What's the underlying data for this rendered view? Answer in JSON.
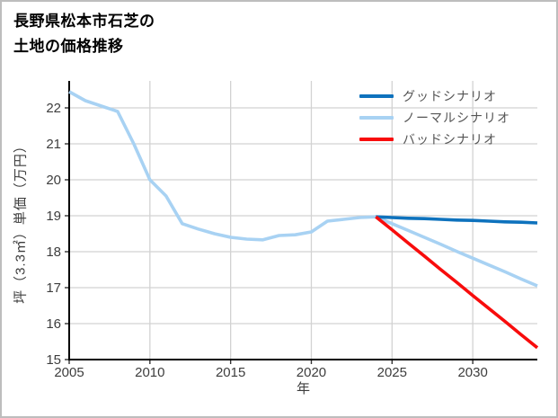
{
  "chart_data": {
    "type": "line",
    "title_lines": [
      "長野県松本市石芝の",
      "土地の価格推移"
    ],
    "xlabel": "年",
    "ylabel": "坪（3.3㎡）単価（万円）",
    "xlim": [
      2005,
      2034
    ],
    "ylim": [
      15,
      22.75
    ],
    "xticks": [
      2005,
      2010,
      2015,
      2020,
      2025,
      2030
    ],
    "yticks": [
      15,
      16,
      17,
      18,
      19,
      20,
      21,
      22
    ],
    "grid": true,
    "legend_position": "upper right",
    "draw_order": [
      1,
      0,
      2
    ],
    "colors": {
      "good": "#0e72bd",
      "normal": "#a8d2f3",
      "bad": "#f80c0c",
      "grid": "#d2d2d2",
      "spine": "#000000",
      "tick_label": "#3d3d3d",
      "legend_text": "#555555"
    },
    "series": [
      {
        "name": "グッドシナリオ",
        "color": "#0e72bd",
        "x": [
          2024,
          2025,
          2026,
          2027,
          2028,
          2029,
          2030,
          2031,
          2032,
          2033,
          2034
        ],
        "values": [
          18.97,
          18.95,
          18.93,
          18.92,
          18.9,
          18.88,
          18.87,
          18.85,
          18.83,
          18.82,
          18.8
        ]
      },
      {
        "name": "ノーマルシナリオ",
        "color": "#a8d2f3",
        "x": [
          2005,
          2006,
          2007,
          2008,
          2009,
          2010,
          2011,
          2012,
          2013,
          2014,
          2015,
          2016,
          2017,
          2018,
          2019,
          2020,
          2021,
          2022,
          2023,
          2024,
          2025,
          2026,
          2027,
          2028,
          2029,
          2030,
          2031,
          2032,
          2033,
          2034
        ],
        "values": [
          22.45,
          22.2,
          22.05,
          21.9,
          21.0,
          20.0,
          19.55,
          18.78,
          18.63,
          18.5,
          18.4,
          18.35,
          18.33,
          18.45,
          18.47,
          18.55,
          18.85,
          18.9,
          18.95,
          18.97,
          18.78,
          18.59,
          18.4,
          18.21,
          18.01,
          17.82,
          17.63,
          17.44,
          17.24,
          17.05
        ]
      },
      {
        "name": "バッドシナリオ",
        "color": "#f80c0c",
        "x": [
          2024,
          2025,
          2026,
          2027,
          2028,
          2029,
          2030,
          2031,
          2032,
          2033,
          2034
        ],
        "values": [
          18.97,
          18.61,
          18.24,
          17.88,
          17.51,
          17.15,
          16.78,
          16.42,
          16.06,
          15.69,
          15.33
        ]
      }
    ]
  }
}
